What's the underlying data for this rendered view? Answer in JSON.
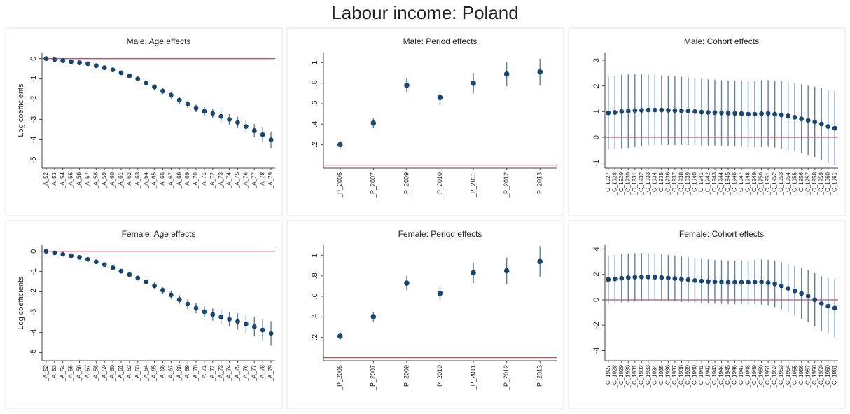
{
  "title": "Labour income: Poland",
  "chart_data": [
    {
      "type": "errorbar",
      "title": "Male: Age effects",
      "ylabel": "Log coefficients",
      "color": "#1a476f",
      "error_color": "#5f7f9f",
      "hline": 0,
      "hline_color": "#c0506a",
      "categories": [
        "_A_52",
        "_A_53",
        "_A_54",
        "_A_55",
        "_A_56",
        "_A_57",
        "_A_58",
        "_A_59",
        "_A_60",
        "_A_61",
        "_A_62",
        "_A_63",
        "_A_64",
        "_A_65",
        "_A_66",
        "_A_67",
        "_A_68",
        "_A_69",
        "_A_70",
        "_A_71",
        "_A_72",
        "_A_73",
        "_A_74",
        "_A_75",
        "_A_76",
        "_A_77",
        "_A_78",
        "_A_79"
      ],
      "values": [
        0,
        -0.05,
        -0.1,
        -0.15,
        -0.2,
        -0.25,
        -0.35,
        -0.45,
        -0.55,
        -0.7,
        -0.85,
        -1.0,
        -1.2,
        -1.4,
        -1.6,
        -1.8,
        -2.05,
        -2.25,
        -2.45,
        -2.6,
        -2.7,
        -2.85,
        -3.0,
        -3.15,
        -3.35,
        -3.55,
        -3.75,
        -4.0
      ],
      "errors": [
        0.01,
        0.02,
        0.03,
        0.04,
        0.05,
        0.06,
        0.07,
        0.08,
        0.09,
        0.1,
        0.11,
        0.12,
        0.13,
        0.14,
        0.15,
        0.16,
        0.17,
        0.18,
        0.19,
        0.2,
        0.22,
        0.24,
        0.26,
        0.28,
        0.3,
        0.33,
        0.36,
        0.4
      ],
      "ylim": [
        -5.4,
        0.3
      ],
      "yticks": [
        0,
        -1,
        -2,
        -3,
        -4,
        -5
      ]
    },
    {
      "type": "errorbar",
      "title": "Male: Period effects",
      "color": "#1a476f",
      "error_color": "#5f7f9f",
      "hline": 0,
      "hline_color": "#c0506a",
      "categories": [
        "_P_2006",
        "_P_2007",
        "_P_2009",
        "_P_2010",
        "_P_2011",
        "_P_2012",
        "_P_2013"
      ],
      "values": [
        0.2,
        0.41,
        0.78,
        0.66,
        0.8,
        0.89,
        0.91
      ],
      "errors": [
        0.04,
        0.05,
        0.07,
        0.06,
        0.1,
        0.12,
        0.13
      ],
      "ylim": [
        -0.03,
        1.1
      ],
      "yticks": [
        {
          "value": 0.2,
          "label": ".2"
        },
        {
          "value": 0.4,
          "label": ".4"
        },
        {
          "value": 0.6,
          "label": ".6"
        },
        {
          "value": 0.8,
          "label": ".8"
        },
        1
      ]
    },
    {
      "type": "errorbar",
      "title": "Male: Cohort effects",
      "color": "#1a476f",
      "error_color": "#5f7f9f",
      "hline": 0,
      "hline_color": "#c0506a",
      "categories": [
        "_C_1927",
        "_C_1928",
        "_C_1929",
        "_C_1930",
        "_C_1931",
        "_C_1932",
        "_C_1933",
        "_C_1934",
        "_C_1935",
        "_C_1936",
        "_C_1937",
        "_C_1938",
        "_C_1939",
        "_C_1940",
        "_C_1941",
        "_C_1942",
        "_C_1943",
        "_C_1944",
        "_C_1945",
        "_C_1946",
        "_C_1947",
        "_C_1948",
        "_C_1949",
        "_C_1950",
        "_C_1951",
        "_C_1952",
        "_C_1953",
        "_C_1954",
        "_C_1955",
        "_C_1956",
        "_C_1957",
        "_C_1958",
        "_C_1959",
        "_C_1960",
        "_C_1961"
      ],
      "values": [
        0.95,
        0.97,
        1.0,
        1.02,
        1.04,
        1.05,
        1.06,
        1.06,
        1.06,
        1.05,
        1.04,
        1.03,
        1.02,
        1.0,
        0.98,
        0.97,
        0.96,
        0.95,
        0.94,
        0.93,
        0.92,
        0.9,
        0.9,
        0.92,
        0.93,
        0.9,
        0.87,
        0.83,
        0.78,
        0.72,
        0.66,
        0.6,
        0.52,
        0.42,
        0.35
      ],
      "errors": [
        1.4,
        1.42,
        1.43,
        1.43,
        1.42,
        1.4,
        1.38,
        1.37,
        1.36,
        1.35,
        1.34,
        1.33,
        1.32,
        1.31,
        1.3,
        1.29,
        1.28,
        1.27,
        1.27,
        1.27,
        1.28,
        1.28,
        1.29,
        1.3,
        1.3,
        1.3,
        1.31,
        1.32,
        1.33,
        1.34,
        1.35,
        1.37,
        1.4,
        1.43,
        1.45
      ],
      "ylim": [
        -1.2,
        3.3
      ],
      "yticks": [
        -1,
        0,
        1,
        2,
        3
      ]
    },
    {
      "type": "errorbar",
      "title": "Female: Age effects",
      "ylabel": "Log coefficients",
      "color": "#1a476f",
      "error_color": "#5f7f9f",
      "hline": 0,
      "hline_color": "#c0506a",
      "categories": [
        "_A_52",
        "_A_53",
        "_A_54",
        "_A_55",
        "_A_56",
        "_A_57",
        "_A_58",
        "_A_59",
        "_A_60",
        "_A_61",
        "_A_62",
        "_A_63",
        "_A_64",
        "_A_65",
        "_A_66",
        "_A_67",
        "_A_68",
        "_A_69",
        "_A_70",
        "_A_71",
        "_A_72",
        "_A_73",
        "_A_74",
        "_A_75",
        "_A_76",
        "_A_77",
        "_A_78",
        "_A_79"
      ],
      "values": [
        0,
        -0.08,
        -0.15,
        -0.22,
        -0.3,
        -0.4,
        -0.52,
        -0.66,
        -0.82,
        -0.98,
        -1.15,
        -1.32,
        -1.5,
        -1.7,
        -1.92,
        -2.15,
        -2.38,
        -2.6,
        -2.8,
        -2.98,
        -3.12,
        -3.24,
        -3.35,
        -3.46,
        -3.58,
        -3.72,
        -3.88,
        -4.05
      ],
      "errors": [
        0.01,
        0.02,
        0.03,
        0.04,
        0.05,
        0.06,
        0.07,
        0.08,
        0.09,
        0.1,
        0.11,
        0.12,
        0.14,
        0.16,
        0.18,
        0.2,
        0.22,
        0.24,
        0.26,
        0.28,
        0.3,
        0.33,
        0.36,
        0.4,
        0.44,
        0.48,
        0.53,
        0.6
      ],
      "ylim": [
        -5.4,
        0.3
      ],
      "yticks": [
        0,
        -1,
        -2,
        -3,
        -4,
        -5
      ]
    },
    {
      "type": "errorbar",
      "title": "Female: Period effects",
      "color": "#1a476f",
      "error_color": "#5f7f9f",
      "hline": 0,
      "hline_color": "#c0506a",
      "categories": [
        "_P_2006",
        "_P_2007",
        "_P_2009",
        "_P_2010",
        "_P_2011",
        "_P_2012",
        "_P_2013"
      ],
      "values": [
        0.21,
        0.4,
        0.73,
        0.63,
        0.83,
        0.85,
        0.94
      ],
      "errors": [
        0.04,
        0.05,
        0.07,
        0.07,
        0.1,
        0.13,
        0.15
      ],
      "ylim": [
        -0.03,
        1.1
      ],
      "yticks": [
        {
          "value": 0.2,
          "label": ".2"
        },
        {
          "value": 0.4,
          "label": ".4"
        },
        {
          "value": 0.6,
          "label": ".6"
        },
        {
          "value": 0.8,
          "label": ".8"
        },
        1
      ]
    },
    {
      "type": "errorbar",
      "title": "Female: Cohort effects",
      "color": "#1a476f",
      "error_color": "#5f7f9f",
      "hline": 0,
      "hline_color": "#c0506a",
      "categories": [
        "_C_1927",
        "_C_1928",
        "_C_1929",
        "_C_1930",
        "_C_1931",
        "_C_1932",
        "_C_1933",
        "_C_1934",
        "_C_1935",
        "_C_1936",
        "_C_1937",
        "_C_1938",
        "_C_1939",
        "_C_1940",
        "_C_1941",
        "_C_1942",
        "_C_1943",
        "_C_1944",
        "_C_1945",
        "_C_1946",
        "_C_1947",
        "_C_1948",
        "_C_1949",
        "_C_1950",
        "_C_1951",
        "_C_1952",
        "_C_1953",
        "_C_1954",
        "_C_1955",
        "_C_1956",
        "_C_1957",
        "_C_1958",
        "_C_1959",
        "_C_1960",
        "_C_1961"
      ],
      "values": [
        1.6,
        1.65,
        1.7,
        1.75,
        1.78,
        1.8,
        1.8,
        1.78,
        1.75,
        1.72,
        1.68,
        1.62,
        1.58,
        1.52,
        1.48,
        1.45,
        1.42,
        1.4,
        1.38,
        1.38,
        1.38,
        1.38,
        1.4,
        1.4,
        1.35,
        1.25,
        1.1,
        0.9,
        0.7,
        0.5,
        0.3,
        0.0,
        -0.3,
        -0.5,
        -0.65
      ],
      "errors": [
        1.9,
        1.9,
        1.9,
        1.9,
        1.9,
        1.88,
        1.86,
        1.85,
        1.84,
        1.82,
        1.8,
        1.78,
        1.76,
        1.75,
        1.74,
        1.73,
        1.72,
        1.72,
        1.72,
        1.72,
        1.73,
        1.74,
        1.75,
        1.77,
        1.8,
        1.83,
        1.86,
        1.9,
        1.95,
        2.0,
        2.05,
        2.1,
        2.15,
        2.2,
        2.3
      ],
      "ylim": [
        -4.8,
        4.3
      ],
      "yticks": [
        -4,
        -2,
        0,
        2,
        4
      ]
    }
  ]
}
